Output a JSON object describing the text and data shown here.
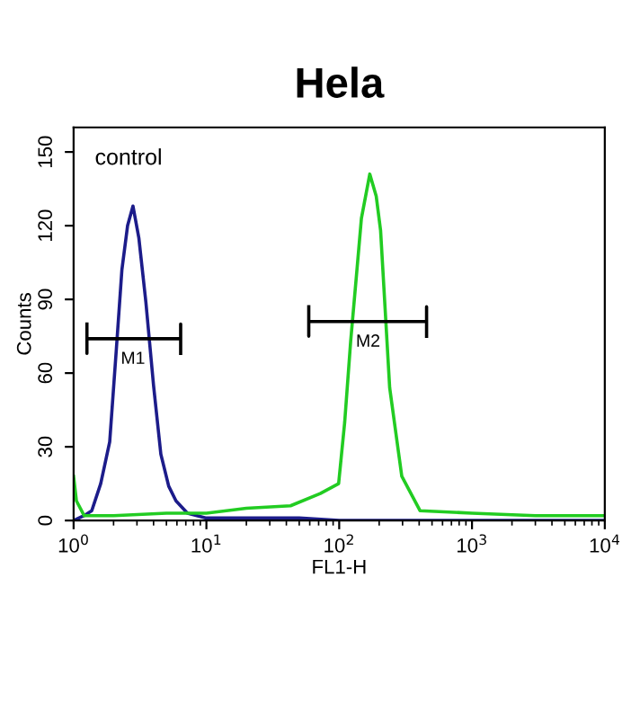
{
  "chart_data": {
    "type": "line",
    "title": "Hela",
    "xlabel": "FL1-H",
    "ylabel": "Counts",
    "log": "x",
    "xlim": [
      1,
      10000
    ],
    "xticks": [
      {
        "value": 1,
        "label": "10$^{0}$"
      },
      {
        "value": 10,
        "label": "10$^{1}$"
      },
      {
        "value": 100,
        "label": "10$^{2}$"
      },
      {
        "value": 1000,
        "label": "10$^{3}$"
      },
      {
        "value": 10000,
        "label": "10$^{4}$"
      }
    ],
    "ylim": [
      0,
      160
    ],
    "yticks": [
      0,
      30,
      60,
      90,
      120,
      150
    ],
    "grid": false,
    "legend": false,
    "series": [
      {
        "color": "#1c1c8a",
        "x": [
          1.0,
          1.2,
          1.37,
          1.6,
          1.87,
          2.1,
          2.31,
          2.55,
          2.8,
          3.1,
          3.5,
          4.0,
          4.54,
          5.2,
          5.9,
          7.2,
          10,
          20,
          50,
          100,
          200,
          1000,
          10000
        ],
        "values": [
          0,
          2,
          4,
          15,
          32,
          70,
          102,
          120,
          128,
          115,
          89,
          55,
          27,
          14,
          8,
          3,
          1,
          1,
          1,
          0,
          0,
          0,
          0
        ]
      },
      {
        "color": "#22cc22",
        "x": [
          1.0,
          1.05,
          1.2,
          2,
          5,
          10,
          20,
          43,
          72,
          99,
          110,
          122,
          135,
          147,
          170,
          190,
          205,
          240,
          296,
          406,
          1000,
          3000,
          10000
        ],
        "values": [
          18,
          8,
          2,
          2,
          3,
          3,
          5,
          6,
          11,
          15,
          40,
          73,
          100,
          123,
          141,
          132,
          118,
          54,
          18,
          4,
          3,
          2,
          2
        ]
      },
      {
        "color": "#000000",
        "x": [
          1.26,
          1.26,
          1.26,
          6.4,
          6.4,
          6.4
        ],
        "values": [
          80,
          68,
          74,
          74,
          80,
          68
        ]
      },
      {
        "color": "#000000",
        "x": [
          59,
          59,
          59,
          455,
          455,
          455
        ],
        "values": [
          87,
          75,
          81,
          81,
          87,
          75
        ]
      }
    ],
    "annotations": [
      "control",
      {
        "text": "M1",
        "x": 2.8,
        "y": 74
      },
      {
        "text": "M2",
        "x": 165,
        "y": 81
      }
    ]
  }
}
